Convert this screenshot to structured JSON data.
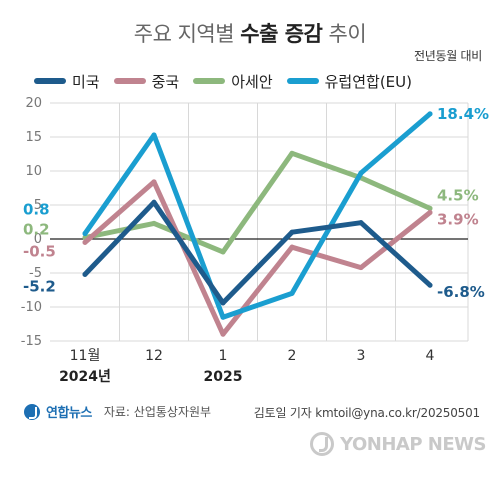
{
  "header": {
    "title_prefix": "주요 지역별",
    "title_bold": "수출 증감",
    "title_suffix": "추이",
    "subtitle": "전년동월 대비"
  },
  "colors": {
    "usa": "#1e5b8c",
    "china": "#c0838f",
    "asean": "#8db87d",
    "eu": "#1a9ed0",
    "grid": "#d8d8d8",
    "zero_line": "#222222"
  },
  "footer": {
    "brand": "연합뉴스",
    "source": "자료: 산업통상자원부",
    "credit": "김토일 기자 kmtoil@yna.co.kr/20250501",
    "watermark": "YONHAP NEWS"
  },
  "chart_data": {
    "type": "line",
    "title": "주요 지역별 수출 증감 추이",
    "subtitle": "전년동월 대비",
    "categories": [
      "11월",
      "12",
      "1",
      "2",
      "3",
      "4"
    ],
    "category_years": [
      "2024년",
      "",
      "2025",
      "",
      "",
      ""
    ],
    "ylim": [
      -15,
      20
    ],
    "yticks": [
      -15,
      -10,
      -5,
      0,
      5,
      10,
      15,
      20
    ],
    "grid": true,
    "legend_position": "top",
    "series": [
      {
        "name": "미국",
        "color_key": "usa",
        "values": [
          -5.2,
          5.4,
          -9.4,
          1.0,
          2.4,
          -6.8
        ],
        "start_label": "-5.2",
        "end_label": "-6.8%"
      },
      {
        "name": "중국",
        "color_key": "china",
        "values": [
          -0.5,
          8.4,
          -14.0,
          -1.2,
          -4.2,
          3.9
        ],
        "start_label": "-0.5",
        "end_label": "3.9%"
      },
      {
        "name": "아세안",
        "color_key": "asean",
        "values": [
          0.2,
          2.3,
          -1.9,
          12.6,
          9.0,
          4.5
        ],
        "start_label": "0.2",
        "end_label": "4.5%"
      },
      {
        "name": "유럽연합(EU)",
        "color_key": "eu",
        "values": [
          0.8,
          15.3,
          -11.5,
          -8.0,
          9.7,
          18.4
        ],
        "start_label": "0.8",
        "end_label": "18.4%"
      }
    ]
  }
}
